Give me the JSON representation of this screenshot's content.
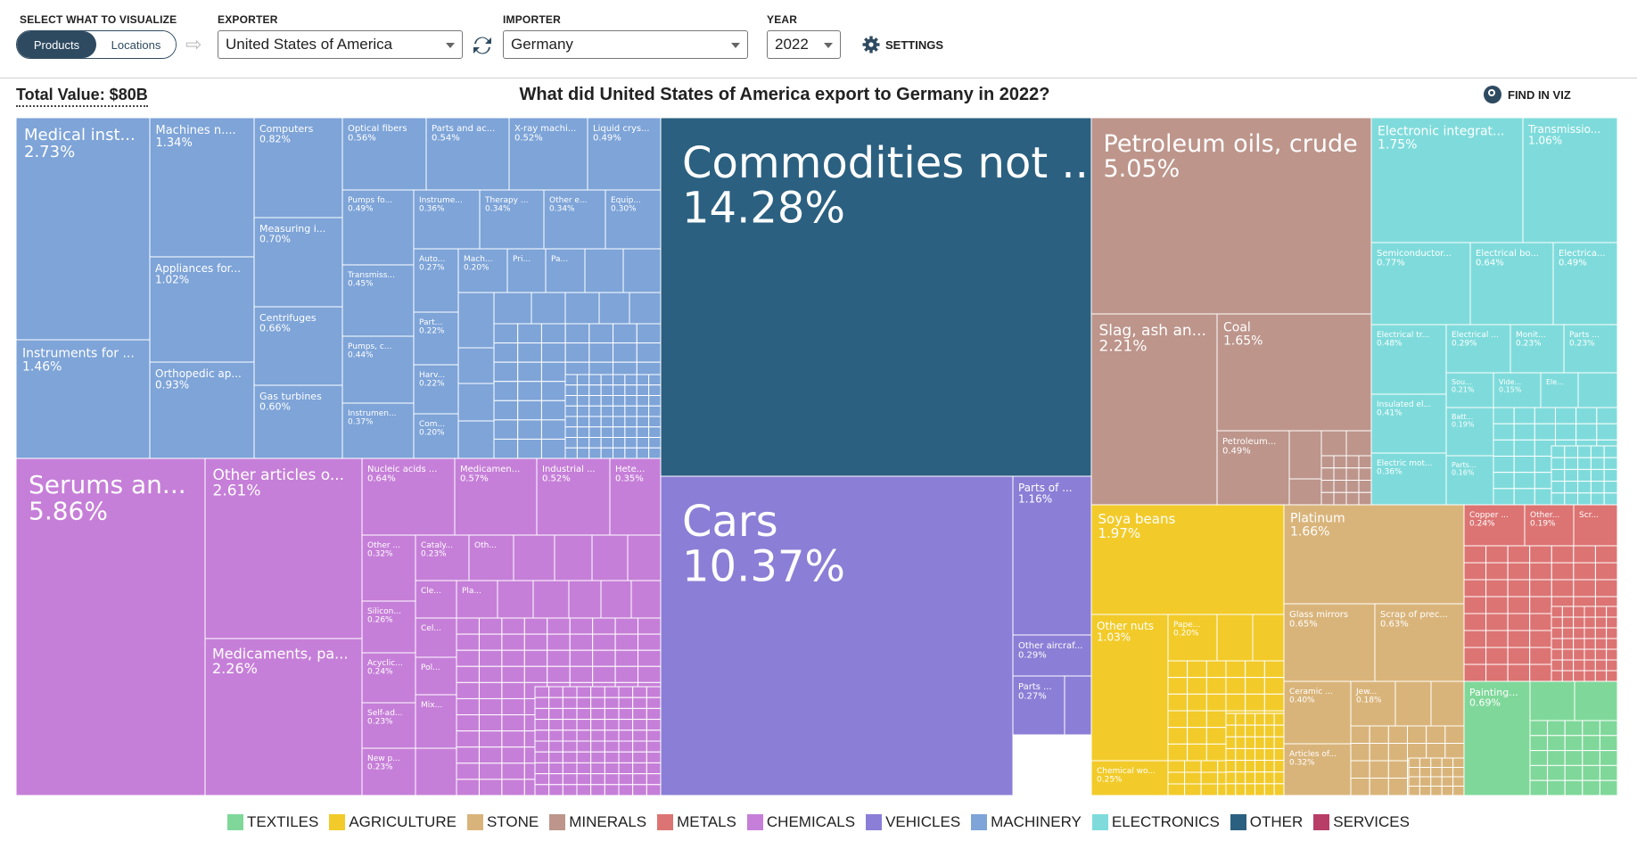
{
  "controls": {
    "visualize_label": "SELECT WHAT TO VISUALIZE",
    "toggle_products": "Products",
    "toggle_locations": "Locations",
    "exporter_label": "EXPORTER",
    "exporter_value": "United States of America",
    "importer_label": "IMPORTER",
    "importer_value": "Germany",
    "year_label": "YEAR",
    "year_value": "2022",
    "settings_label": "SETTINGS"
  },
  "header": {
    "total_value": "Total Value: $80B",
    "title": "What did United States of America export to Germany in 2022?",
    "find_label": "FIND IN VIZ"
  },
  "colors": {
    "TEXTILES": "#7fd89a",
    "AGRICULTURE": "#f2cb2a",
    "STONE": "#d9b47a",
    "MINERALS": "#bd958b",
    "METALS": "#dc7473",
    "CHEMICALS": "#c67fd8",
    "VEHICLES": "#8b7ed6",
    "MACHINERY": "#7ea4d8",
    "ELECTRONICS": "#7fdbdb",
    "OTHER": "#2b6080",
    "SERVICES": "#b83e67"
  },
  "legend": [
    "TEXTILES",
    "AGRICULTURE",
    "STONE",
    "MINERALS",
    "METALS",
    "CHEMICALS",
    "VEHICLES",
    "MACHINERY",
    "ELECTRONICS",
    "OTHER",
    "SERVICES"
  ],
  "chart_data": {
    "type": "treemap",
    "title": "What did United States of America export to Germany in 2022?",
    "total": "$80B",
    "unit": "% of total export value",
    "sectors": [
      {
        "name": "OTHER",
        "value": 14.28,
        "items": [
          {
            "name": "Commodities not ...",
            "value": 14.28
          }
        ]
      },
      {
        "name": "MACHINERY",
        "value": 21.0,
        "items": [
          {
            "name": "Medical inst...",
            "value": 2.73
          },
          {
            "name": "Instruments for ...",
            "value": 1.46
          },
          {
            "name": "Machines n....",
            "value": 1.34
          },
          {
            "name": "Appliances for...",
            "value": 1.02
          },
          {
            "name": "Orthopedic ap...",
            "value": 0.93
          },
          {
            "name": "Computers",
            "value": 0.82
          },
          {
            "name": "Measuring i...",
            "value": 0.7
          },
          {
            "name": "Centrifuges",
            "value": 0.66
          },
          {
            "name": "Gas turbines",
            "value": 0.6
          },
          {
            "name": "Optical fibers",
            "value": 0.56
          },
          {
            "name": "Parts and ac...",
            "value": 0.54
          },
          {
            "name": "X-ray machi...",
            "value": 0.52
          },
          {
            "name": "Liquid crys...",
            "value": 0.49
          },
          {
            "name": "Pumps fo...",
            "value": 0.49
          },
          {
            "name": "Transmiss...",
            "value": 0.45
          },
          {
            "name": "Pumps, c...",
            "value": 0.44
          },
          {
            "name": "Instrumen...",
            "value": 0.37
          },
          {
            "name": "Instrume...",
            "value": 0.36
          },
          {
            "name": "Therapy ...",
            "value": 0.34
          },
          {
            "name": "Other e...",
            "value": 0.34
          },
          {
            "name": "Equip...",
            "value": 0.3
          },
          {
            "name": "Auto...",
            "value": 0.27
          },
          {
            "name": "Part...",
            "value": 0.22
          },
          {
            "name": "Harv...",
            "value": 0.22
          },
          {
            "name": "Mach...",
            "value": 0.2
          },
          {
            "name": "Com...",
            "value": 0.2
          },
          {
            "name": "Pri...",
            "value": null
          },
          {
            "name": "Pa...",
            "value": null
          }
        ]
      },
      {
        "name": "CHEMICALS",
        "value": 19.5,
        "items": [
          {
            "name": "Serums an...",
            "value": 5.86
          },
          {
            "name": "Other articles o...",
            "value": 2.61
          },
          {
            "name": "Medicaments, pa...",
            "value": 2.26
          },
          {
            "name": "Nucleic acids ...",
            "value": 0.64
          },
          {
            "name": "Medicamen...",
            "value": 0.57
          },
          {
            "name": "Industrial ...",
            "value": 0.52
          },
          {
            "name": "Hete...",
            "value": 0.35
          },
          {
            "name": "Other ...",
            "value": 0.32
          },
          {
            "name": "Silicon...",
            "value": 0.26
          },
          {
            "name": "Acyclic...",
            "value": 0.24
          },
          {
            "name": "Self-ad...",
            "value": 0.23
          },
          {
            "name": "Cataly...",
            "value": 0.23
          },
          {
            "name": "New p...",
            "value": 0.23
          },
          {
            "name": "Oth...",
            "value": null
          },
          {
            "name": "Cle...",
            "value": null
          },
          {
            "name": "Pla...",
            "value": null
          },
          {
            "name": "Cel...",
            "value": null
          },
          {
            "name": "Pol...",
            "value": null
          },
          {
            "name": "Mix...",
            "value": null
          }
        ]
      },
      {
        "name": "VEHICLES",
        "value": 12.1,
        "items": [
          {
            "name": "Cars",
            "value": 10.37
          },
          {
            "name": "Parts of ...",
            "value": 1.16
          },
          {
            "name": "Other aircraf...",
            "value": 0.29
          },
          {
            "name": "Parts ...",
            "value": 0.27
          }
        ]
      },
      {
        "name": "MINERALS",
        "value": 9.9,
        "items": [
          {
            "name": "Petroleum oils, crude",
            "value": 5.05
          },
          {
            "name": "Slag, ash an...",
            "value": 2.21
          },
          {
            "name": "Coal",
            "value": 1.65
          },
          {
            "name": "Petroleum...",
            "value": 0.49
          }
        ]
      },
      {
        "name": "ELECTRONICS",
        "value": 7.2,
        "items": [
          {
            "name": "Electronic integrat...",
            "value": 1.75
          },
          {
            "name": "Transmissio...",
            "value": 1.06
          },
          {
            "name": "Semiconductor...",
            "value": 0.77
          },
          {
            "name": "Electrical bo...",
            "value": 0.64
          },
          {
            "name": "Electrica...",
            "value": 0.49
          },
          {
            "name": "Electrical tr...",
            "value": 0.48
          },
          {
            "name": "Insulated el...",
            "value": 0.41
          },
          {
            "name": "Electric mot...",
            "value": 0.36
          },
          {
            "name": "Electrical ...",
            "value": 0.29
          },
          {
            "name": "Monit...",
            "value": 0.23
          },
          {
            "name": "Parts ...",
            "value": 0.23
          },
          {
            "name": "Sou...",
            "value": 0.21
          },
          {
            "name": "Batt...",
            "value": 0.19
          },
          {
            "name": "Parts...",
            "value": 0.16
          },
          {
            "name": "Vide...",
            "value": 0.15
          },
          {
            "name": "Ele...",
            "value": null
          }
        ]
      },
      {
        "name": "AGRICULTURE",
        "value": 4.7,
        "items": [
          {
            "name": "Soya beans",
            "value": 1.97
          },
          {
            "name": "Other nuts",
            "value": 1.03
          },
          {
            "name": "Chemical wo...",
            "value": 0.25
          },
          {
            "name": "Pape...",
            "value": 0.2
          }
        ]
      },
      {
        "name": "STONE",
        "value": 4.6,
        "items": [
          {
            "name": "Platinum",
            "value": 1.66
          },
          {
            "name": "Glass mirrors",
            "value": 0.65
          },
          {
            "name": "Scrap of prec...",
            "value": 0.63
          },
          {
            "name": "Ceramic ...",
            "value": 0.4
          },
          {
            "name": "Articles of...",
            "value": 0.32
          },
          {
            "name": "Jew...",
            "value": 0.18
          }
        ]
      },
      {
        "name": "METALS",
        "value": 2.9,
        "items": [
          {
            "name": "Copper ...",
            "value": 0.24
          },
          {
            "name": "Other...",
            "value": 0.19
          },
          {
            "name": "Scr...",
            "value": null
          }
        ]
      },
      {
        "name": "TEXTILES",
        "value": 1.7,
        "items": [
          {
            "name": "Painting...",
            "value": 0.69
          }
        ]
      },
      {
        "name": "SERVICES",
        "value": 0,
        "items": []
      }
    ]
  }
}
